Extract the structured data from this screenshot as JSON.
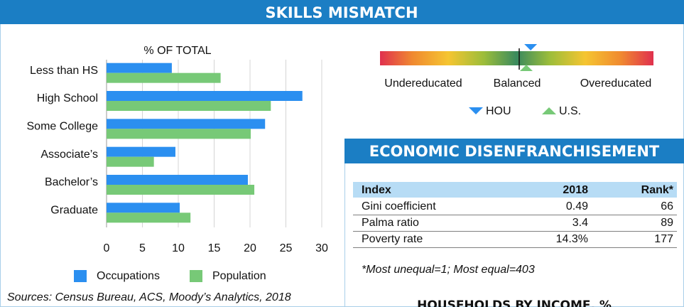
{
  "header": {
    "title": "SKILLS MISMATCH"
  },
  "chart_data": {
    "type": "bar",
    "orientation": "horizontal",
    "title": "% OF TOTAL",
    "categories": [
      "Less than HS",
      "High School",
      "Some College",
      "Associate’s",
      "Bachelor’s",
      "Graduate"
    ],
    "series": [
      {
        "name": "Occupations",
        "color": "#2b8ff0",
        "values": [
          9.1,
          27.3,
          22.1,
          9.6,
          19.7,
          10.2
        ]
      },
      {
        "name": "Population",
        "color": "#77c977",
        "values": [
          15.9,
          22.9,
          20.1,
          6.6,
          20.6,
          11.7
        ]
      }
    ],
    "xlim": [
      0,
      30
    ],
    "xticks": [
      0,
      5,
      10,
      15,
      20,
      25,
      30
    ],
    "grid": true,
    "legend": "bottom",
    "source": "Sources: Census Bureau, ACS, Moody’s Analytics, 2018"
  },
  "gauge": {
    "labels": [
      "Undereducated",
      "Balanced",
      "Overeducated"
    ],
    "markers": [
      {
        "name": "HOU",
        "color": "#2b8ff0",
        "value": 55.1
      },
      {
        "name": "U.S.",
        "color": "#77c977",
        "value": 53.5
      }
    ]
  },
  "section": {
    "title": "ECONOMIC DISENFRANCHISEMENT"
  },
  "table": {
    "columns": [
      "Index",
      "2018",
      "Rank*"
    ],
    "rows": [
      [
        "Gini coefficient",
        "0.49",
        "66"
      ],
      [
        "Palma ratio",
        "3.4",
        "89"
      ],
      [
        "Poverty rate",
        "14.3%",
        "177"
      ]
    ],
    "footnote": "*Most unequal=1; Most equal=403"
  },
  "next_section": {
    "title": "HOUSEHOLDS BY INCOME, %"
  }
}
